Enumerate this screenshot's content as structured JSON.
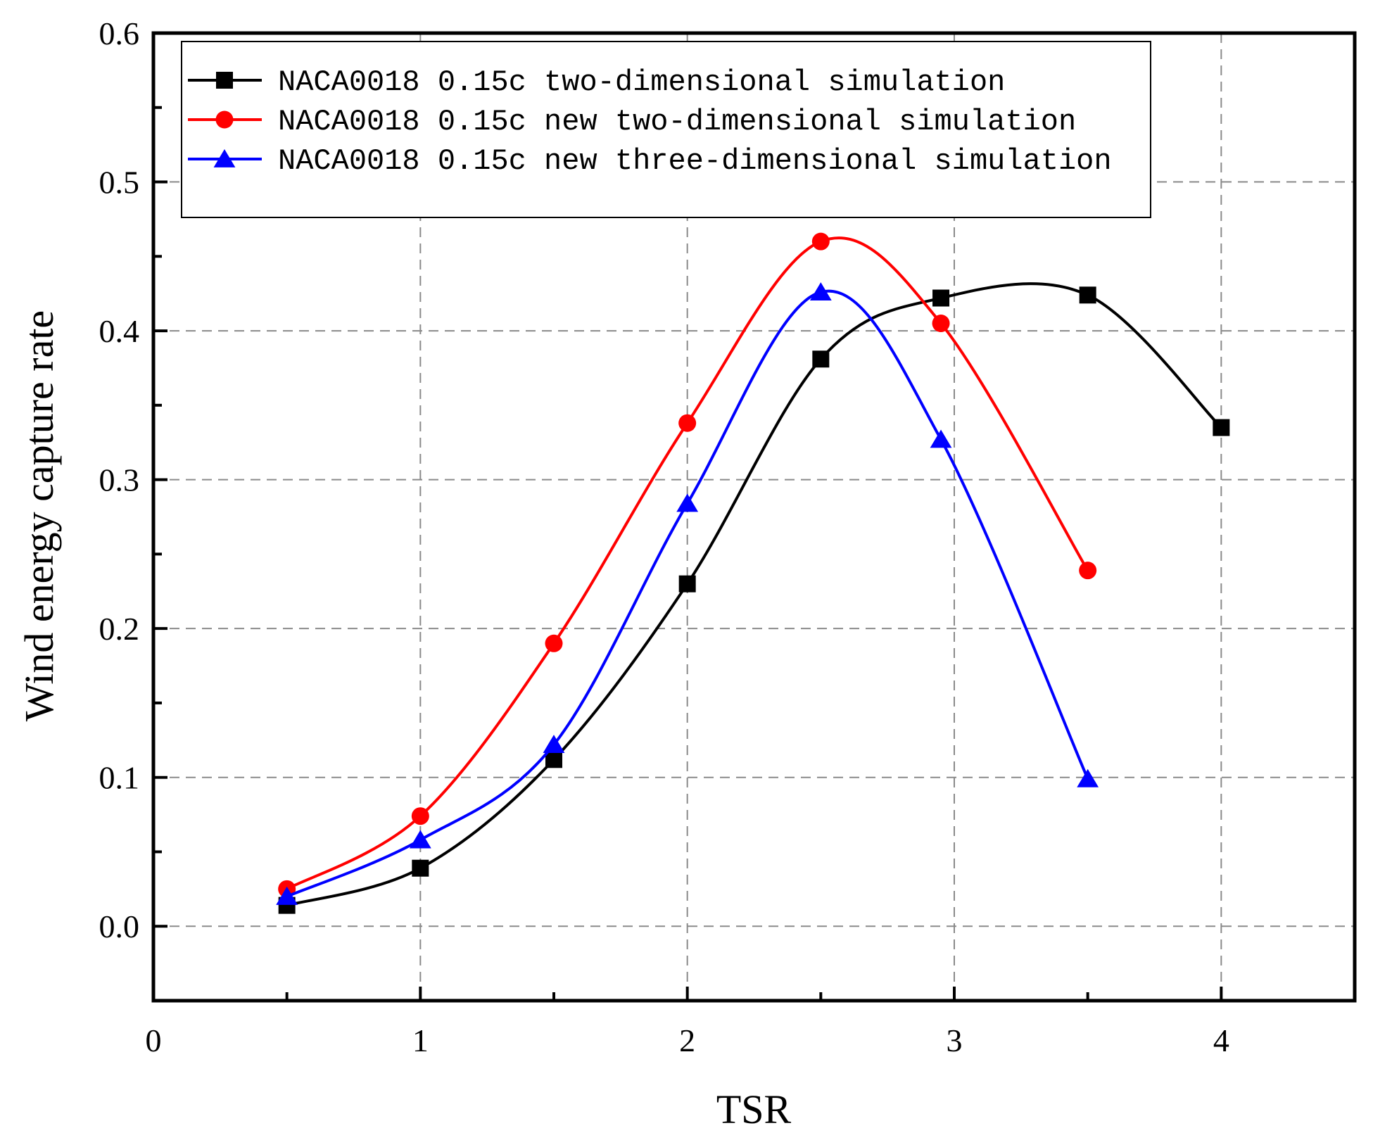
{
  "chart_data": {
    "type": "line",
    "title": "",
    "xlabel": "TSR",
    "ylabel": "Wind energy capture rate",
    "xlim": [
      0,
      4.5
    ],
    "ylim": [
      -0.05,
      0.6
    ],
    "xticks": [
      0,
      1,
      2,
      3,
      4
    ],
    "xtick_labels": [
      "0",
      "1",
      "2",
      "3",
      "4"
    ],
    "yticks": [
      0.0,
      0.1,
      0.2,
      0.3,
      0.4,
      0.5,
      0.6
    ],
    "ytick_labels": [
      "0.0",
      "0.1",
      "0.2",
      "0.3",
      "0.4",
      "0.5",
      "0.6"
    ],
    "grid": true,
    "legend_position": "top-left",
    "series": [
      {
        "name": "NACA0018 0.15c two-dimensional simulation",
        "color": "#000000",
        "marker": "square",
        "x": [
          0.5,
          1,
          1.5,
          2,
          2.5,
          2.95,
          3.5,
          4
        ],
        "y": [
          0.014,
          0.039,
          0.112,
          0.23,
          0.381,
          0.422,
          0.424,
          0.335
        ]
      },
      {
        "name": "NACA0018 0.15c new two-dimensional simulation",
        "color": "#ff0000",
        "marker": "circle",
        "x": [
          0.5,
          1,
          1.5,
          2,
          2.5,
          2.95,
          3.5
        ],
        "y": [
          0.025,
          0.074,
          0.19,
          0.338,
          0.46,
          0.405,
          0.239
        ]
      },
      {
        "name": "NACA0018 0.15c new three-dimensional simulation",
        "color": "#0000ff",
        "marker": "triangle",
        "x": [
          0.5,
          1,
          1.5,
          2,
          2.5,
          2.95,
          3.5
        ],
        "y": [
          0.02,
          0.058,
          0.122,
          0.284,
          0.426,
          0.327,
          0.099
        ]
      }
    ]
  }
}
